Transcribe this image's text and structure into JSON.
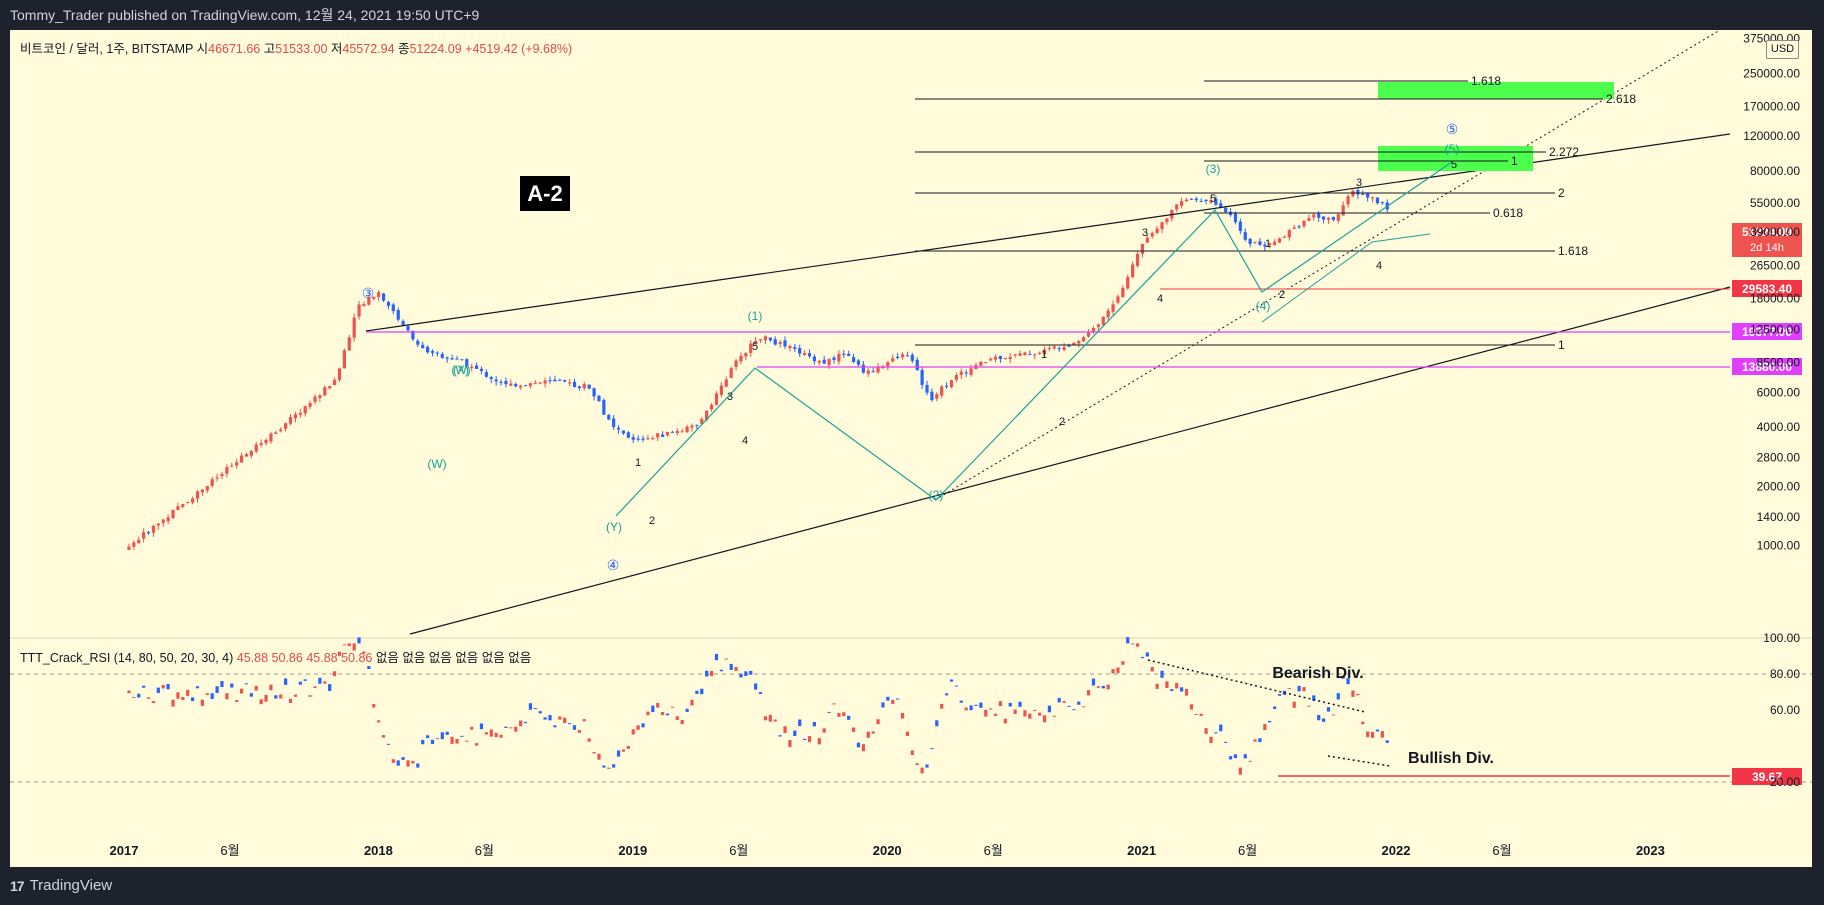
{
  "publisher": "Tommy_Trader published on TradingView.com, 12월 24, 2021 19:50 UTC+9",
  "footer_logo": "TradingView",
  "header": {
    "symbol": "비트코인 / 달러, 1주, BITSTAMP",
    "open_label": "시",
    "open": "46671.66",
    "high_label": "고",
    "high": "51533.00",
    "low_label": "저",
    "low": "45572.94",
    "close_label": "종",
    "close": "51224.09",
    "change": "+4519.42 (+9.68%)"
  },
  "currency": "USD",
  "indicator": {
    "label": "TTT_Crack_RSI (14, 80, 50, 20, 30, 4)",
    "values": [
      "45.88",
      "50.86",
      "45.88",
      "50.86"
    ],
    "na": "없음 없음 없음 없음 없음 없음"
  },
  "annotation_box": "A-2",
  "price_badges": [
    {
      "text": "51224.09",
      "sub": "2d 14h",
      "color": "#ef5350"
    },
    {
      "text": "29583.40",
      "color": "#f23645"
    },
    {
      "text": "19377.00",
      "color": "#e040fb"
    },
    {
      "text": "13880.00",
      "color": "#e040fb"
    }
  ],
  "rsi_badge": {
    "text": "39.67",
    "color": "#f23645"
  },
  "colors": {
    "background": "#fffbdb",
    "up": "#ef5350",
    "down": "#2962ff",
    "wave": "#1aa39a",
    "magenta": "#e040fb",
    "green": "#4cff4c"
  },
  "chart_data": [
    {
      "type": "candlestick",
      "title": "비트코인 / 달러, 1주, BITSTAMP",
      "scale": "log",
      "y_ticks": [
        "375000.00",
        "250000.00",
        "170000.00",
        "120000.00",
        "80000.00",
        "55000.00",
        "39000.00",
        "26500.00",
        "18000.00",
        "12500.00",
        "8500.00",
        "6000.00",
        "4000.00",
        "2800.00",
        "2000.00",
        "1400.00",
        "1000.00"
      ],
      "x_ticks": [
        "2017",
        "6월",
        "2018",
        "6월",
        "2019",
        "6월",
        "2020",
        "6월",
        "2021",
        "6월",
        "2022",
        "6월",
        "2023"
      ],
      "waves": [
        {
          "x": "2018-01",
          "y": 19400
        },
        {
          "x": "2018-12",
          "y": 3200
        },
        {
          "x": "2019-06",
          "y": 13800
        },
        {
          "x": "2020-03",
          "y": 3800
        },
        {
          "x": "2021-04",
          "y": 64800
        },
        {
          "x": "2021-07",
          "y": 29300
        },
        {
          "x": "2021-11",
          "y": 69000
        }
      ],
      "fib_labels": [
        "1.618",
        "2.618",
        "2.272",
        "1",
        "2",
        "0.618",
        "1.618",
        "1"
      ],
      "wave_labels": [
        "③",
        "④",
        "⑤",
        "(W)",
        "(X)",
        "(Y)",
        "(1)",
        "(2)",
        "(3)",
        "(4)",
        "(5)",
        "1",
        "2",
        "3",
        "4",
        "5"
      ],
      "horizontal_levels": [
        29583.4,
        19377.0,
        13880.0
      ]
    },
    {
      "type": "candlestick",
      "title": "TTT_Crack_RSI (14, 80, 50, 20, 30, 4)",
      "y_ticks": [
        "100.00",
        "80.00",
        "60.00",
        "20.00"
      ],
      "ylim": [
        20,
        100
      ],
      "levels": [
        80,
        20
      ],
      "annotations": [
        "Bearish Div.",
        "Bullish Div."
      ],
      "last_value": 39.67
    }
  ]
}
